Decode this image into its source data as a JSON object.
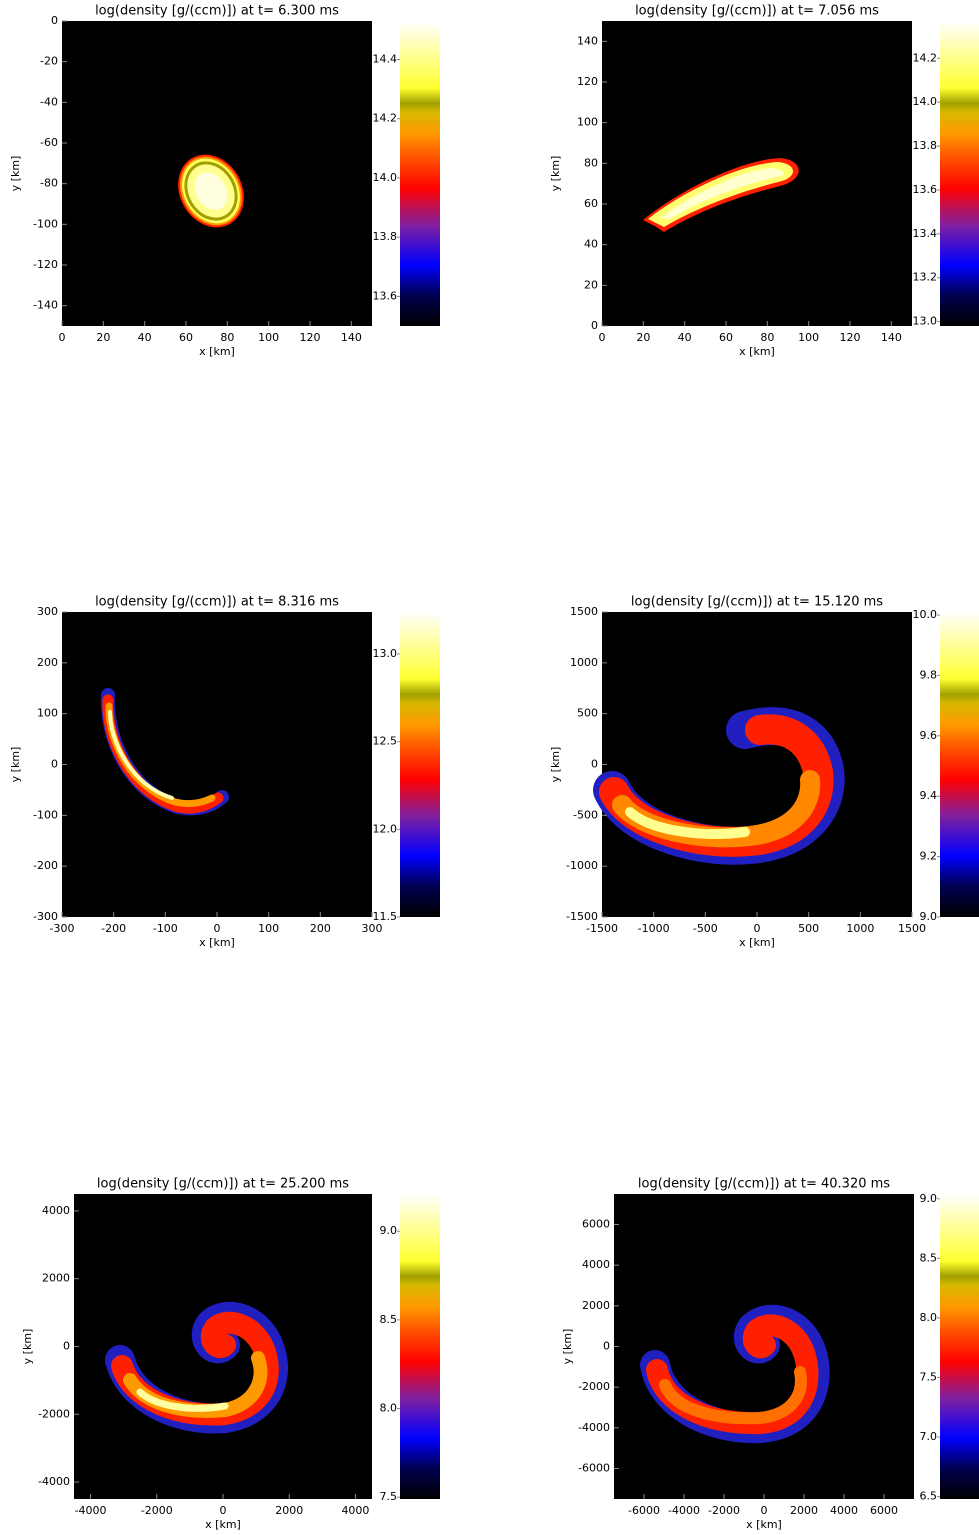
{
  "chart_data": [
    {
      "type": "heatmap",
      "title": "log(density [g/(ccm)]) at t=  6.300 ms",
      "xlabel": "x [km]",
      "ylabel": "y [km]",
      "xlim": [
        0,
        150
      ],
      "ylim": [
        -150,
        0
      ],
      "xticks": [
        0,
        20,
        40,
        60,
        80,
        100,
        120,
        140
      ],
      "yticks": [
        0,
        -20,
        -40,
        -60,
        -80,
        -100,
        -120,
        -140
      ],
      "colorbar": {
        "clim": [
          13.5,
          14.53
        ],
        "ticks": [
          13.6,
          13.8,
          {
            "value": 14,
            "label": "14.0"
          },
          14.2,
          14.4
        ]
      }
    },
    {
      "type": "heatmap",
      "title": "log(density [g/(ccm)]) at t=  7.056 ms",
      "xlabel": "x [km]",
      "ylabel": "y [km]",
      "xlim": [
        0,
        150
      ],
      "ylim": [
        0,
        150
      ],
      "xticks": [
        0,
        20,
        40,
        60,
        80,
        100,
        120,
        140
      ],
      "yticks": [
        0,
        20,
        40,
        60,
        80,
        100,
        120,
        140
      ],
      "colorbar": {
        "clim": [
          12.98,
          14.37
        ],
        "ticks": [
          {
            "value": 13,
            "label": "13.0"
          },
          13.2,
          13.4,
          13.6,
          13.8,
          {
            "value": 14,
            "label": "14.0"
          },
          14.2
        ]
      }
    },
    {
      "type": "heatmap",
      "title": "log(density [g/(ccm)]) at t=  8.316 ms",
      "xlabel": "x [km]",
      "ylabel": "y [km]",
      "xlim": [
        -300,
        300
      ],
      "ylim": [
        -300,
        300
      ],
      "xticks": [
        -300,
        -200,
        -100,
        0,
        100,
        200,
        300
      ],
      "yticks": [
        -300,
        -200,
        -100,
        0,
        100,
        200,
        300
      ],
      "colorbar": {
        "clim": [
          11.5,
          13.24
        ],
        "ticks": [
          11.5,
          {
            "value": 12,
            "label": "12.0"
          },
          12.5,
          {
            "value": 13,
            "label": "13.0"
          }
        ]
      }
    },
    {
      "type": "heatmap",
      "title": "log(density [g/(ccm)]) at t= 15.120 ms",
      "xlabel": "x [km]",
      "ylabel": "y [km]",
      "xlim": [
        -1500,
        1500
      ],
      "ylim": [
        -1500,
        1500
      ],
      "xticks": [
        -1500,
        -1000,
        -500,
        0,
        500,
        1000,
        1500
      ],
      "yticks": [
        -1500,
        -1000,
        -500,
        0,
        500,
        1000,
        1500
      ],
      "colorbar": {
        "clim": [
          9.0,
          10.01
        ],
        "ticks": [
          {
            "value": 9,
            "label": "9.0"
          },
          9.2,
          9.4,
          9.6,
          9.8,
          {
            "value": 10,
            "label": "10.0"
          }
        ]
      }
    },
    {
      "type": "heatmap",
      "title": "log(density [g/(ccm)]) at t= 25.200 ms",
      "xlabel": "x [km]",
      "ylabel": "y [km]",
      "xlim": [
        -4500,
        4500
      ],
      "ylim": [
        -4500,
        4500
      ],
      "xticks": [
        -4000,
        -2000,
        0,
        2000,
        4000
      ],
      "yticks": [
        -4000,
        -2000,
        0,
        2000,
        4000
      ],
      "colorbar": {
        "clim": [
          7.49,
          9.21
        ],
        "ticks": [
          7.5,
          {
            "value": 8,
            "label": "8.0"
          },
          8.5,
          {
            "value": 9,
            "label": "9.0"
          }
        ]
      }
    },
    {
      "type": "heatmap",
      "title": "log(density [g/(ccm)]) at t= 40.320 ms",
      "xlabel": "x [km]",
      "ylabel": "y [km]",
      "xlim": [
        -7500,
        7500
      ],
      "ylim": [
        -7500,
        7500
      ],
      "xticks": [
        -6000,
        -4000,
        -2000,
        0,
        2000,
        4000,
        6000
      ],
      "yticks": [
        -6000,
        -4000,
        -2000,
        0,
        2000,
        4000,
        6000
      ],
      "colorbar": {
        "clim": [
          6.48,
          9.04
        ],
        "ticks": [
          6.5,
          {
            "value": 7,
            "label": "7.0"
          },
          7.5,
          {
            "value": 8,
            "label": "8.0"
          },
          8.5,
          {
            "value": 9,
            "label": "9.0"
          }
        ]
      }
    }
  ]
}
